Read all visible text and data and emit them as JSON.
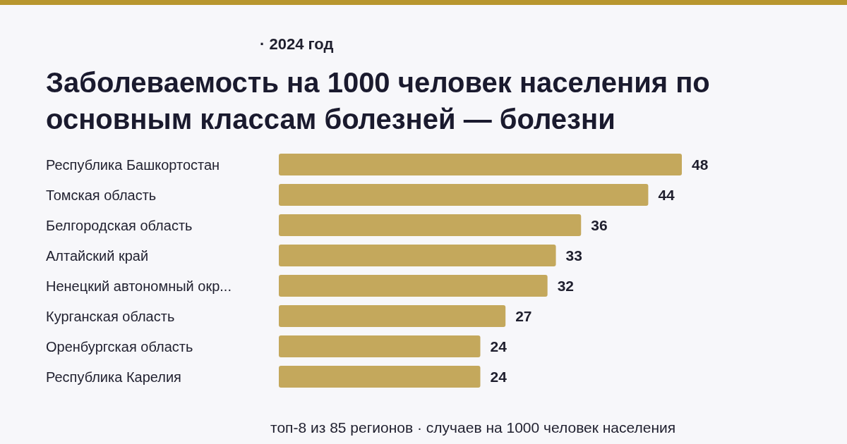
{
  "chart_data": {
    "type": "bar",
    "orientation": "horizontal",
    "title": "Заболеваемость на 1000 человек населения по основным классам болезней — болезни",
    "subtitle": "· 2024 год",
    "categories": [
      "Республика Башкортостан",
      "Томская область",
      "Белгородская область",
      "Алтайский край",
      "Ненецкий автономный окр...",
      "Курганская область",
      "Оренбургская область",
      "Республика Карелия"
    ],
    "values": [
      48,
      44,
      36,
      33,
      32,
      27,
      24,
      24
    ],
    "color": "#c4a85c",
    "data_labels": true,
    "annotations": [
      "топ-8 из 85 регионов · случаев на 1000 человек населения"
    ]
  }
}
